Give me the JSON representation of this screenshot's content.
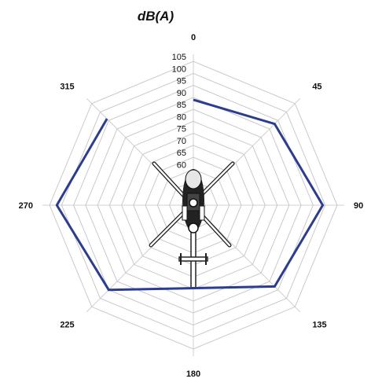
{
  "chart_data": {
    "type": "radar",
    "title": "dB(A)",
    "directions": [
      "0",
      "45",
      "90",
      "135",
      "180",
      "225",
      "270",
      "315"
    ],
    "rticks": [
      60,
      65,
      70,
      75,
      80,
      85,
      90,
      95,
      100,
      105
    ],
    "rlim": [
      45,
      108
    ],
    "grid": true,
    "series": [
      {
        "color": "#2b3d8e",
        "points": [
          {
            "direction": 0,
            "value": 89
          },
          {
            "direction": 45,
            "value": 93
          },
          {
            "direction": 90,
            "value": 99
          },
          {
            "direction": 135,
            "value": 93
          },
          {
            "direction": 225,
            "value": 95
          },
          {
            "direction": 270,
            "value": 102
          },
          {
            "direction": 315,
            "value": 96
          }
        ]
      }
    ]
  },
  "center_icon": "helicopter-top-view-icon"
}
